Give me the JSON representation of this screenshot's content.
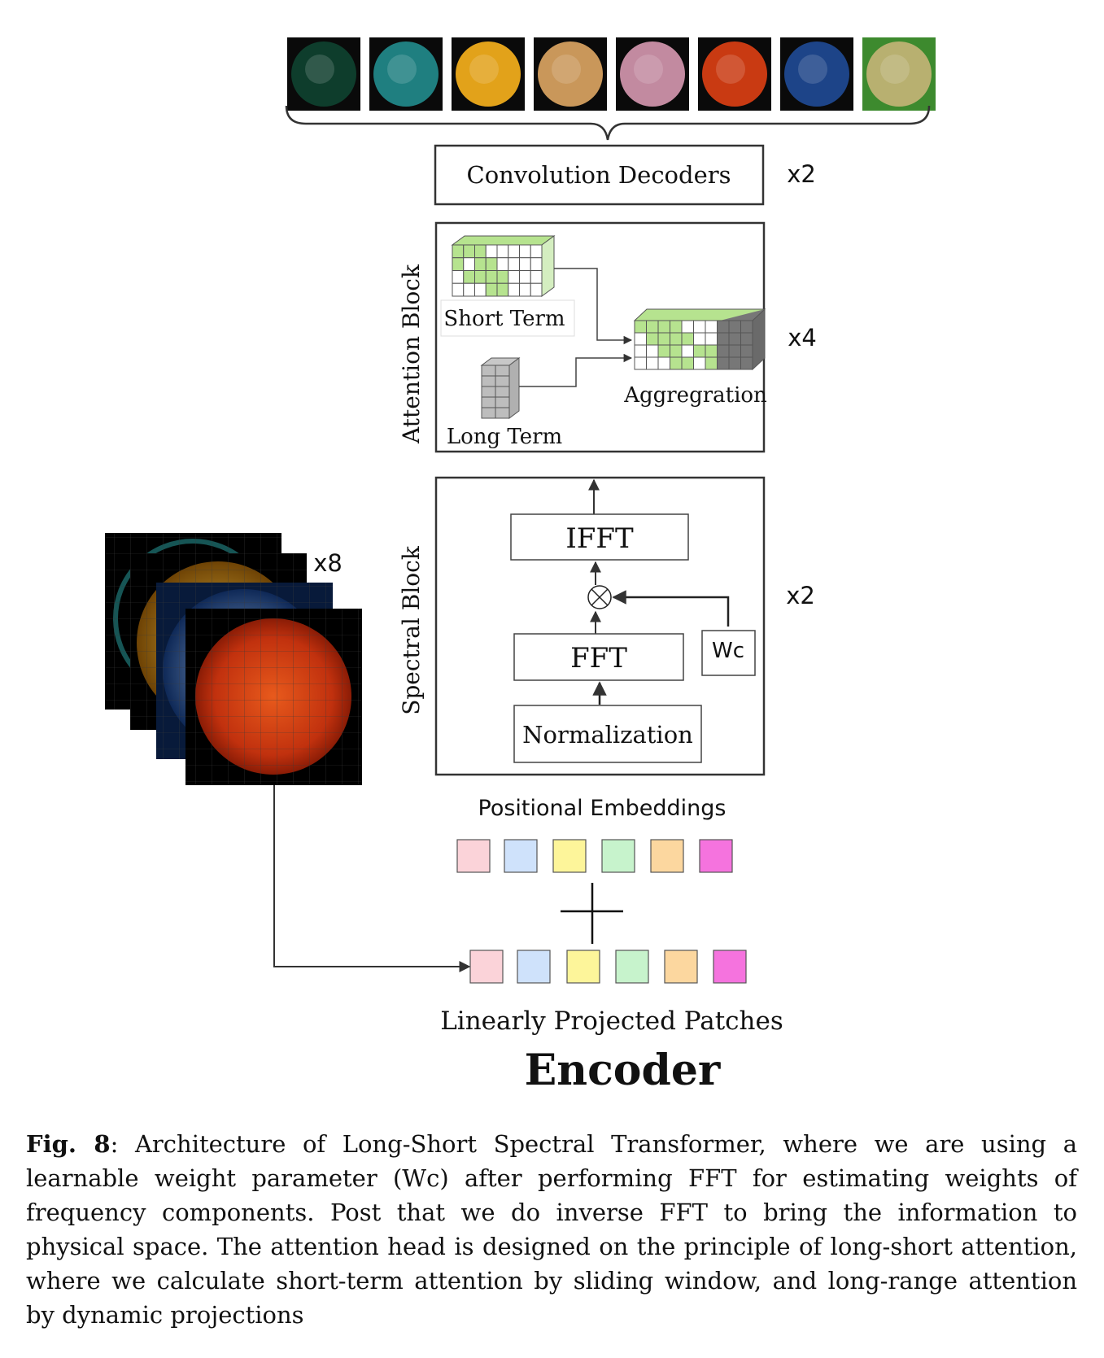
{
  "decoders": {
    "label": "Convolution Decoders",
    "repeat": "x2"
  },
  "attention_block": {
    "title": "Attention Block",
    "short_term": "Short Term",
    "long_term": "Long Term",
    "aggregation": "Aggregration",
    "repeat": "x4"
  },
  "spectral_block": {
    "title": "Spectral  Block",
    "ifft": "IFFT",
    "fft": "FFT",
    "wc": "Wc",
    "normalization": "Normalization",
    "repeat": "x2"
  },
  "input_stack": {
    "repeat": "x8"
  },
  "positional_embeddings": {
    "label": "Positional Embeddings"
  },
  "patches": {
    "label": "Linearly Projected Patches"
  },
  "encoder": {
    "title": "Encoder"
  },
  "channel_colors": [
    "#0e3d2c",
    "#1f7f80",
    "#e2a21a",
    "#c9975a",
    "#c28aa0",
    "#c93a12",
    "#1d4488",
    "#3d8a2e"
  ],
  "token_colors": [
    "#fbd3d9",
    "#cfe2fb",
    "#fdf59a",
    "#c7f3cc",
    "#fcd79f",
    "#f573de"
  ],
  "caption": {
    "label": "Fig. 8",
    "text": ": Architecture of Long-Short Spectral Transformer, where we are using a learnable weight parameter (Wc) after performing FFT for estimating weights of frequency components. Post that we do inverse FFT to bring the information to physical space. The attention head is designed on the principle of long-short attention, where we calculate short-term attention by sliding window, and long-range attention by dynamic projections"
  }
}
